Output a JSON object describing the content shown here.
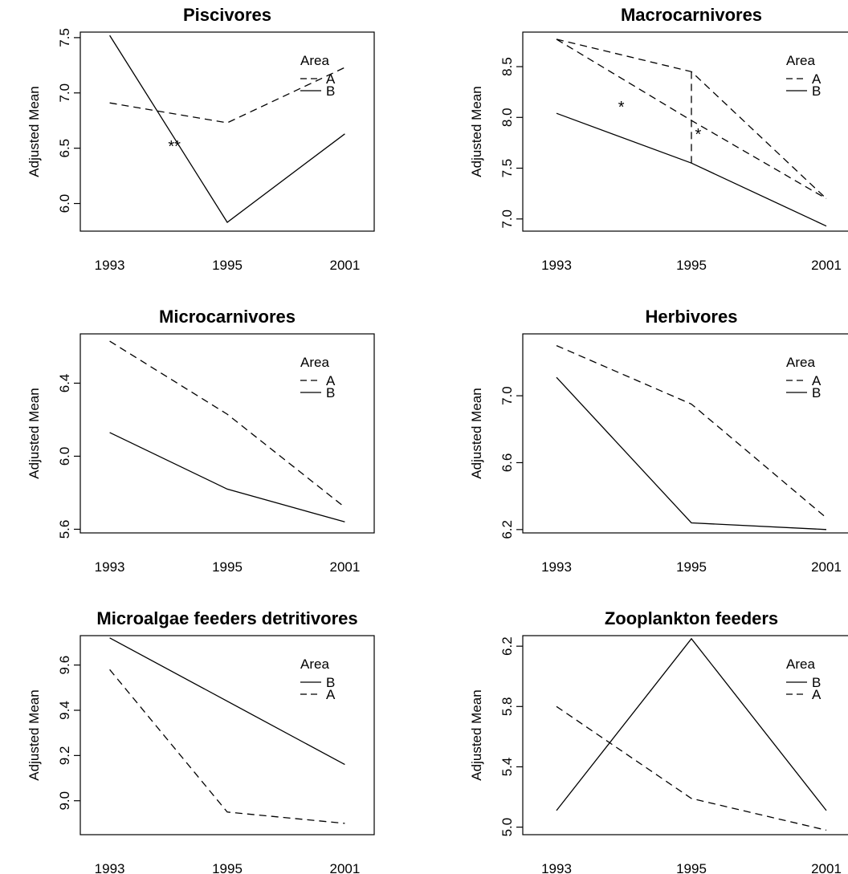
{
  "chart_data": [
    {
      "type": "line",
      "title": "Piscivores",
      "ylabel": "Adjusted Mean",
      "xlabel": "",
      "categories": [
        "1993",
        "1995",
        "2001"
      ],
      "ylim": [
        5.75,
        7.55
      ],
      "yticks": [
        "6.0",
        "6.5",
        "7.0",
        "7.5"
      ],
      "legend_title": "Area",
      "legend_position": "top-right",
      "series": [
        {
          "name": "A",
          "style": "dashed",
          "values": [
            6.91,
            6.73,
            7.23
          ]
        },
        {
          "name": "B",
          "style": "solid",
          "values": [
            7.52,
            5.83,
            6.63
          ]
        }
      ],
      "annotations": [
        {
          "text": "**",
          "x": 0.55,
          "y": 6.47
        }
      ],
      "grid": false
    },
    {
      "type": "line",
      "title": "Macrocarnivores",
      "ylabel": "Adjusted Mean",
      "xlabel": "",
      "categories": [
        "1993",
        "1995",
        "2001"
      ],
      "ylim": [
        6.88,
        8.84
      ],
      "yticks": [
        "7.0",
        "7.5",
        "8.0",
        "8.5"
      ],
      "legend_title": "Area",
      "legend_position": "top-right",
      "series": [
        {
          "name": "A",
          "style": "dashed",
          "values": [
            8.77,
            8.45,
            7.2
          ]
        },
        {
          "name": "B",
          "style": "solid",
          "values": [
            8.04,
            7.55,
            6.93
          ]
        },
        {
          "name": "",
          "style": "dashed",
          "values": [
            8.77,
            7.97,
            7.2
          ]
        }
      ],
      "annotations": [
        {
          "text": "*",
          "x": 0.48,
          "y": 8.05
        },
        {
          "text": "*",
          "x": 1.05,
          "y": 7.78
        }
      ],
      "grid": false
    },
    {
      "type": "line",
      "title": "Microcarnivores",
      "ylabel": "Adjusted Mean",
      "xlabel": "",
      "categories": [
        "1993",
        "1995",
        "2001"
      ],
      "ylim": [
        5.58,
        6.67
      ],
      "yticks": [
        "5.6",
        "6.0",
        "6.4"
      ],
      "legend_title": "Area",
      "legend_position": "top-right",
      "series": [
        {
          "name": "A",
          "style": "dashed",
          "values": [
            6.63,
            6.23,
            5.72
          ]
        },
        {
          "name": "B",
          "style": "solid",
          "values": [
            6.13,
            5.82,
            5.64
          ]
        }
      ],
      "annotations": [],
      "grid": false
    },
    {
      "type": "line",
      "title": "Herbivores",
      "ylabel": "Adjusted Mean",
      "xlabel": "",
      "categories": [
        "1993",
        "1995",
        "2001"
      ],
      "ylim": [
        6.18,
        7.37
      ],
      "yticks": [
        "6.2",
        "6.6",
        "7.0"
      ],
      "legend_title": "Area",
      "legend_position": "top-right",
      "series": [
        {
          "name": "A",
          "style": "dashed",
          "values": [
            7.3,
            6.95,
            6.27
          ]
        },
        {
          "name": "B",
          "style": "solid",
          "values": [
            7.11,
            6.24,
            6.2
          ]
        }
      ],
      "annotations": [],
      "grid": false
    },
    {
      "type": "line",
      "title": "Microalgae feeders detritivores",
      "ylabel": "Adjusted Mean",
      "xlabel": "",
      "categories": [
        "1993",
        "1995",
        "2001"
      ],
      "ylim": [
        8.85,
        9.73
      ],
      "yticks": [
        "9.0",
        "9.2",
        "9.4",
        "9.6"
      ],
      "legend_title": "Area",
      "legend_position": "top-right",
      "series": [
        {
          "name": "B",
          "style": "solid",
          "values": [
            9.72,
            9.44,
            9.16
          ]
        },
        {
          "name": "A",
          "style": "dashed",
          "values": [
            9.58,
            8.95,
            8.9
          ]
        }
      ],
      "annotations": [],
      "grid": false
    },
    {
      "type": "line",
      "title": "Zooplankton feeders",
      "ylabel": "Adjusted Mean",
      "xlabel": "",
      "categories": [
        "1993",
        "1995",
        "2001"
      ],
      "ylim": [
        4.95,
        6.27
      ],
      "yticks": [
        "5.0",
        "5.4",
        "5.8",
        "6.2"
      ],
      "legend_title": "Area",
      "legend_position": "top-right",
      "series": [
        {
          "name": "B",
          "style": "solid",
          "values": [
            5.11,
            6.25,
            5.11
          ]
        },
        {
          "name": "A",
          "style": "dashed",
          "values": [
            5.8,
            5.19,
            4.98
          ]
        }
      ],
      "annotations": [],
      "grid": false
    }
  ]
}
